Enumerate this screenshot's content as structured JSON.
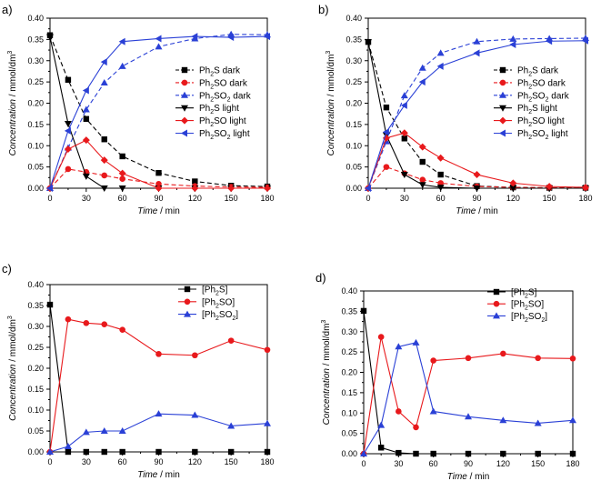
{
  "chart_data": [
    {
      "panel_label": "a)",
      "type": "line",
      "xlabel_italic": "Time",
      "xlabel_unit": " / min",
      "ylabel_italic": "Concentration",
      "ylabel_unit": " / mmol/dm",
      "ylabel_sup": "3",
      "xlim": [
        0,
        180
      ],
      "ylim": [
        0,
        0.4
      ],
      "xticks": [
        0,
        30,
        60,
        90,
        120,
        150,
        180
      ],
      "yticks": [
        "0.00",
        "0.05",
        "0.10",
        "0.15",
        "0.20",
        "0.25",
        "0.30",
        "0.35",
        "0.40"
      ],
      "x": [
        0,
        15,
        30,
        45,
        60,
        90,
        120,
        150,
        180
      ],
      "series": [
        {
          "name": "Ph₂S dark",
          "color": "#000000",
          "dash": true,
          "marker": "square",
          "values": [
            0.36,
            0.255,
            0.163,
            0.115,
            0.075,
            0.036,
            0.016,
            0.006,
            0.004
          ]
        },
        {
          "name": "Ph₂SO dark",
          "color": "#e8191c",
          "dash": true,
          "marker": "circle",
          "values": [
            0.0,
            0.045,
            0.038,
            0.03,
            0.022,
            0.01,
            0.005,
            0.003,
            0.002
          ]
        },
        {
          "name": "Ph₂SO₂ dark",
          "color": "#2a40d6",
          "dash": true,
          "marker": "triangle-up",
          "values": [
            0.0,
            0.095,
            0.185,
            0.248,
            0.287,
            0.333,
            0.352,
            0.362,
            0.361
          ]
        },
        {
          "name": "Ph₂S light",
          "color": "#000000",
          "dash": false,
          "marker": "triangle-down",
          "values": [
            0.356,
            0.152,
            0.028,
            0.0,
            0.0,
            0.0,
            0.0,
            0.0,
            0.0
          ]
        },
        {
          "name": "Ph₂SO light",
          "color": "#e8191c",
          "dash": false,
          "marker": "diamond",
          "values": [
            0.0,
            0.092,
            0.113,
            0.066,
            0.035,
            0.0,
            0.0,
            0.0,
            0.0
          ]
        },
        {
          "name": "Ph₂SO₂ light",
          "color": "#2a40d6",
          "dash": false,
          "marker": "triangle-left",
          "values": [
            0.0,
            0.135,
            0.23,
            0.297,
            0.345,
            0.352,
            0.357,
            0.355,
            0.357
          ]
        }
      ]
    },
    {
      "panel_label": "b)",
      "type": "line",
      "xlabel_italic": "Time",
      "xlabel_unit": " / min",
      "ylabel_italic": "Concentration",
      "ylabel_unit": " / mmol/dm",
      "ylabel_sup": "3",
      "xlim": [
        0,
        180
      ],
      "ylim": [
        0,
        0.4
      ],
      "xticks": [
        0,
        30,
        60,
        90,
        120,
        150,
        180
      ],
      "yticks": [
        "0.00",
        "0.05",
        "0.10",
        "0.15",
        "0.20",
        "0.25",
        "0.30",
        "0.35",
        "0.40"
      ],
      "x": [
        0,
        15,
        30,
        45,
        60,
        90,
        120,
        150,
        180
      ],
      "series": [
        {
          "name": "Ph₂S dark",
          "color": "#000000",
          "dash": true,
          "marker": "square",
          "values": [
            0.344,
            0.19,
            0.117,
            0.062,
            0.032,
            0.005,
            0.002,
            0.001,
            0.001
          ]
        },
        {
          "name": "Ph₂SO dark",
          "color": "#e8191c",
          "dash": true,
          "marker": "circle",
          "values": [
            0.0,
            0.05,
            0.035,
            0.02,
            0.012,
            0.004,
            0.002,
            0.001,
            0.001
          ]
        },
        {
          "name": "Ph₂SO₂ dark",
          "color": "#2a40d6",
          "dash": true,
          "marker": "triangle-up",
          "values": [
            0.0,
            0.11,
            0.218,
            0.283,
            0.318,
            0.345,
            0.351,
            0.352,
            0.353
          ]
        },
        {
          "name": "Ph₂S light",
          "color": "#000000",
          "dash": false,
          "marker": "triangle-down",
          "values": [
            0.344,
            0.125,
            0.032,
            0.008,
            0.002,
            0.0,
            0.0,
            0.0,
            0.0
          ]
        },
        {
          "name": "Ph₂SO light",
          "color": "#e8191c",
          "dash": false,
          "marker": "diamond",
          "values": [
            0.0,
            0.118,
            0.13,
            0.097,
            0.071,
            0.032,
            0.012,
            0.004,
            0.002
          ]
        },
        {
          "name": "Ph₂SO₂ light",
          "color": "#2a40d6",
          "dash": false,
          "marker": "triangle-left",
          "values": [
            0.0,
            0.132,
            0.195,
            0.25,
            0.287,
            0.318,
            0.338,
            0.346,
            0.347
          ]
        }
      ]
    },
    {
      "panel_label": "c)",
      "type": "line",
      "xlabel_italic": "Time",
      "xlabel_unit": " / min",
      "ylabel_italic": "Concentration",
      "ylabel_unit": " / mmol/dm",
      "ylabel_sup": "3",
      "xlim": [
        0,
        180
      ],
      "ylim": [
        0,
        0.4
      ],
      "xticks": [
        0,
        30,
        60,
        90,
        120,
        150,
        180
      ],
      "yticks": [
        "0.00",
        "0.05",
        "0.10",
        "0.15",
        "0.20",
        "0.25",
        "0.30",
        "0.35",
        "0.40"
      ],
      "x": [
        0,
        15,
        30,
        45,
        60,
        90,
        120,
        150,
        180
      ],
      "series": [
        {
          "name": "[Ph₂S]",
          "color": "#000000",
          "dash": false,
          "marker": "square",
          "values": [
            0.352,
            0.0,
            0.0,
            0.0,
            0.0,
            0.0,
            0.0,
            0.0,
            0.0
          ]
        },
        {
          "name": "[Ph₂SO]",
          "color": "#e8191c",
          "dash": false,
          "marker": "circle",
          "values": [
            0.0,
            0.317,
            0.308,
            0.305,
            0.292,
            0.234,
            0.231,
            0.266,
            0.244
          ]
        },
        {
          "name": "[Ph₂SO₂]",
          "color": "#2a40d6",
          "dash": false,
          "marker": "triangle-up",
          "values": [
            0.0,
            0.013,
            0.047,
            0.05,
            0.05,
            0.091,
            0.088,
            0.062,
            0.068
          ]
        }
      ]
    },
    {
      "panel_label": "d)",
      "type": "line",
      "xlabel_italic": "Time",
      "xlabel_unit": " / min",
      "ylabel_italic": "Concentration",
      "ylabel_unit": " / mmol/dm",
      "ylabel_sup": "3",
      "xlim": [
        0,
        180
      ],
      "ylim": [
        0,
        0.4
      ],
      "xticks": [
        0,
        30,
        60,
        90,
        120,
        150,
        180
      ],
      "yticks": [
        "0.00",
        "0.05",
        "0.10",
        "0.15",
        "0.20",
        "0.25",
        "0.30",
        "0.35",
        "0.40"
      ],
      "x": [
        0,
        15,
        30,
        45,
        60,
        90,
        120,
        150,
        180
      ],
      "series": [
        {
          "name": "[Ph₂S]",
          "color": "#000000",
          "dash": false,
          "marker": "square",
          "values": [
            0.351,
            0.015,
            0.002,
            0.0,
            0.0,
            0.0,
            0.0,
            0.0,
            0.0
          ]
        },
        {
          "name": "[Ph₂SO]",
          "color": "#e8191c",
          "dash": false,
          "marker": "circle",
          "values": [
            0.0,
            0.287,
            0.104,
            0.065,
            0.229,
            0.235,
            0.246,
            0.235,
            0.234
          ]
        },
        {
          "name": "[Ph₂SO₂]",
          "color": "#2a40d6",
          "dash": false,
          "marker": "triangle-up",
          "values": [
            0.0,
            0.07,
            0.263,
            0.273,
            0.104,
            0.091,
            0.082,
            0.075,
            0.082
          ]
        }
      ]
    }
  ]
}
